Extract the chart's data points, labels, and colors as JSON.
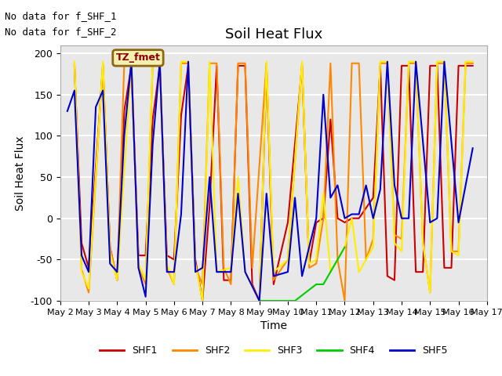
{
  "title": "Soil Heat Flux",
  "xlabel": "Time",
  "ylabel": "Soil Heat Flux",
  "ylim": [
    -100,
    210
  ],
  "yticks": [
    -100,
    -50,
    0,
    50,
    100,
    150,
    200
  ],
  "text_lines": [
    "No data for f_SHF_1",
    "No data for f_SHF_2"
  ],
  "legend_label": "TZ_fmet",
  "legend_box_color": "#f5f0b0",
  "legend_box_edge": "#8B6914",
  "series": {
    "SHF1": {
      "color": "#cc0000",
      "x": [
        0.5,
        0.75,
        1.0,
        1.5,
        1.75,
        2.0,
        2.25,
        2.5,
        2.75,
        3.0,
        3.25,
        3.5,
        3.75,
        4.0,
        4.25,
        4.5,
        4.75,
        5.0,
        5.25,
        5.5,
        5.75,
        6.0,
        6.25,
        6.5,
        6.75,
        7.0,
        7.25,
        7.5,
        8.0,
        8.5,
        8.75,
        9.0,
        9.25,
        9.5,
        9.75,
        10.0,
        10.25,
        10.5,
        11.0,
        11.25,
        11.5,
        11.75,
        12.0,
        12.25,
        12.5,
        12.75,
        13.0,
        13.25,
        13.5,
        13.75,
        14.0,
        14.25,
        14.5
      ],
      "y": [
        185,
        -30,
        -60,
        185,
        -35,
        -75,
        130,
        185,
        -45,
        -45,
        120,
        185,
        -45,
        -50,
        125,
        185,
        -50,
        -100,
        15,
        185,
        -75,
        -75,
        185,
        185,
        -80,
        -100,
        185,
        -80,
        -5,
        185,
        -55,
        -5,
        0,
        120,
        0,
        -5,
        0,
        0,
        25,
        185,
        -70,
        -75,
        185,
        185,
        -65,
        -65,
        185,
        185,
        -60,
        -60,
        185,
        185,
        185
      ]
    },
    "SHF2": {
      "color": "#ff8800",
      "x": [
        0.5,
        0.75,
        1.0,
        1.5,
        1.75,
        2.0,
        2.25,
        2.5,
        2.75,
        3.0,
        3.25,
        3.5,
        3.75,
        4.0,
        4.25,
        4.5,
        4.75,
        5.0,
        5.25,
        5.5,
        5.75,
        6.0,
        6.25,
        6.5,
        6.75,
        7.25,
        7.5,
        8.0,
        8.5,
        8.75,
        9.0,
        9.25,
        9.5,
        9.75,
        10.0,
        10.25,
        10.5,
        10.75,
        11.0,
        11.25,
        11.5,
        11.75,
        12.0,
        12.25,
        12.5,
        12.75,
        13.0,
        13.25,
        13.5,
        13.75,
        14.0,
        14.25,
        14.5
      ],
      "y": [
        188,
        -62,
        -90,
        188,
        -35,
        -75,
        188,
        188,
        -60,
        -80,
        188,
        188,
        -60,
        -80,
        188,
        188,
        -60,
        -80,
        188,
        188,
        -60,
        -80,
        188,
        188,
        -60,
        188,
        -75,
        -50,
        188,
        -60,
        -55,
        0,
        188,
        -50,
        -100,
        188,
        188,
        -50,
        -25,
        188,
        188,
        -20,
        -25,
        188,
        188,
        -30,
        -90,
        188,
        188,
        -40,
        -40,
        188,
        188
      ]
    },
    "SHF3": {
      "color": "#ffee00",
      "x": [
        0.5,
        0.75,
        1.0,
        1.5,
        1.75,
        2.0,
        2.5,
        2.75,
        3.0,
        3.25,
        3.5,
        3.75,
        4.0,
        4.25,
        4.5,
        4.75,
        5.0,
        5.25,
        5.5,
        6.0,
        6.25,
        6.5,
        7.0,
        7.25,
        7.5,
        8.0,
        8.5,
        8.75,
        9.0,
        9.25,
        9.5,
        10.0,
        10.25,
        10.5,
        11.0,
        11.25,
        11.5,
        11.75,
        12.0,
        12.25,
        12.5,
        12.75,
        13.0,
        13.25,
        13.5,
        13.75,
        14.0,
        14.25,
        14.5
      ],
      "y": [
        190,
        -65,
        -85,
        190,
        -42,
        -75,
        190,
        -55,
        -75,
        190,
        190,
        -55,
        -80,
        190,
        190,
        -55,
        -100,
        190,
        -65,
        -60,
        50,
        -65,
        -100,
        190,
        -65,
        -50,
        190,
        -55,
        -50,
        30,
        -65,
        -35,
        0,
        -65,
        -35,
        190,
        190,
        -30,
        -40,
        190,
        190,
        -30,
        -90,
        190,
        190,
        -40,
        -45,
        190,
        190
      ]
    },
    "SHF4": {
      "color": "#00cc00",
      "x": [
        7.0,
        7.25,
        8.0,
        8.25,
        9.0,
        9.25,
        10.0
      ],
      "y": [
        -100,
        -100,
        -100,
        -100,
        -80,
        -80,
        -35
      ]
    },
    "SHF5": {
      "color": "#0000cc",
      "x": [
        0.25,
        0.5,
        0.75,
        1.0,
        1.25,
        1.5,
        1.75,
        2.0,
        2.25,
        2.5,
        2.75,
        3.0,
        3.25,
        3.5,
        3.75,
        4.0,
        4.25,
        4.5,
        4.75,
        5.0,
        5.25,
        5.5,
        6.0,
        6.25,
        6.5,
        7.0,
        7.25,
        7.5,
        8.0,
        8.25,
        8.5,
        9.0,
        9.25,
        9.5,
        9.75,
        10.0,
        10.25,
        10.5,
        10.75,
        11.0,
        11.25,
        11.5,
        11.75,
        12.0,
        12.25,
        12.5,
        13.0,
        13.25,
        13.5,
        14.0,
        14.5
      ],
      "y": [
        130,
        155,
        -45,
        -65,
        135,
        155,
        -55,
        -65,
        100,
        190,
        -60,
        -95,
        90,
        190,
        -65,
        -65,
        5,
        190,
        -65,
        -60,
        50,
        -65,
        -65,
        30,
        -65,
        -100,
        30,
        -70,
        -65,
        25,
        -70,
        0,
        150,
        25,
        40,
        0,
        5,
        5,
        40,
        0,
        35,
        190,
        40,
        0,
        0,
        190,
        -5,
        0,
        190,
        -5,
        85
      ]
    }
  },
  "bg_color": "#e8e8e8",
  "grid_color": "#ffffff",
  "xlim": [
    0,
    15
  ],
  "xticks": [
    0,
    1,
    2,
    3,
    4,
    5,
    6,
    7,
    8,
    9,
    10,
    11,
    12,
    13,
    14,
    15
  ],
  "xtick_labels": [
    "May 2",
    "May 3",
    "May 4",
    "May 5",
    "May 6",
    "May 7",
    "May 8",
    "May 9",
    "May 10",
    "May 11",
    "May 12",
    "May 13",
    "May 14",
    "May 15",
    "May 16",
    "May 17"
  ]
}
